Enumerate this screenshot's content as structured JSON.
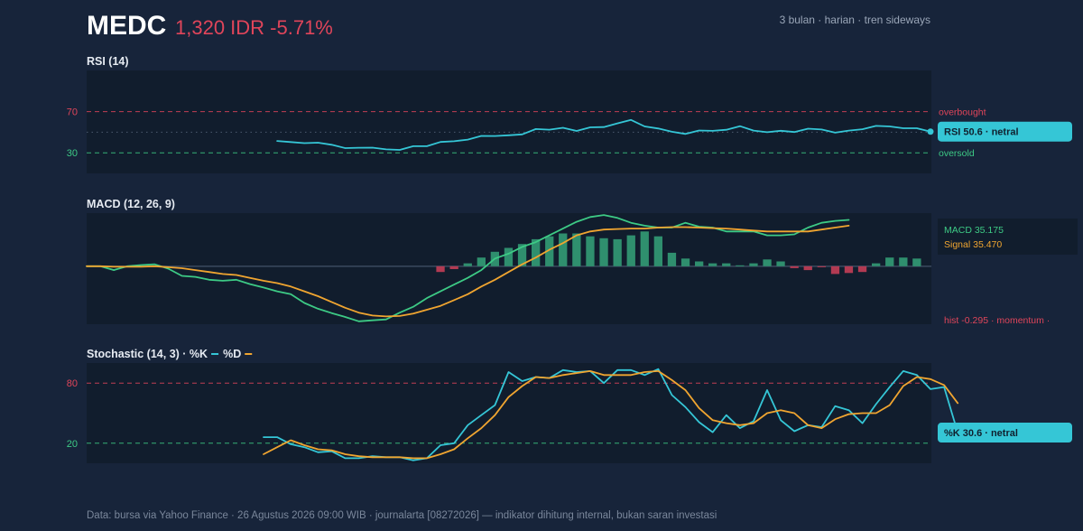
{
  "header": {
    "ticker": "MEDC",
    "price": "1,320 IDR -5.71%",
    "subtitle": "3 bulan · harian · tren sideways"
  },
  "colors": {
    "background": "#17243a",
    "panel": "#111d2d",
    "rsi": "#35c6d6",
    "macd": "#3dca85",
    "signal": "#f0a530",
    "hist_positive": "#2f8f6e",
    "hist_negative": "#b23a52",
    "overbought": "#e0455a",
    "oversold": "#3dca85"
  },
  "footer": "Data: bursa via Yahoo Finance · 26 Agustus 2026 09:00 WIB · journalarta [08272026] — indikator dihitung internal, bukan saran investasi",
  "chart_data": [
    {
      "id": "rsi",
      "type": "line",
      "title": "RSI (14)",
      "ylim": [
        10,
        110
      ],
      "yticks": [
        {
          "value": 70,
          "label": "70"
        },
        {
          "value": 30,
          "label": "30"
        }
      ],
      "levels": [
        {
          "value": 70,
          "label": "overbought",
          "color": "#e0455a"
        },
        {
          "value": 50,
          "label": "",
          "color": "#5b6b80"
        },
        {
          "value": 30,
          "label": "oversold",
          "color": "#3dca85"
        }
      ],
      "x_count": 63,
      "series": [
        {
          "color": "#35c6d6",
          "start_index": 14,
          "values": [
            41.5,
            40.4,
            39.4,
            39.8,
            37.8,
            34.6,
            34.9,
            35.0,
            33.3,
            32.8,
            36.4,
            36.4,
            40.5,
            41.2,
            42.8,
            46.4,
            46.3,
            47.0,
            47.9,
            53.1,
            52.5,
            54.3,
            51.2,
            54.7,
            55.0,
            58.6,
            61.9,
            55.6,
            53.6,
            50.4,
            48.3,
            51.7,
            51.3,
            52.4,
            55.9,
            51.6,
            50.0,
            51.4,
            50.2,
            53.4,
            52.6,
            49.6,
            51.6,
            52.9,
            56.1,
            55.6,
            53.9,
            53.9,
            50.6
          ]
        }
      ],
      "badge": "RSI 50.6 · netral"
    },
    {
      "id": "macd",
      "type": "line",
      "title": "MACD (12, 26, 9)",
      "ylim": [
        -120,
        110
      ],
      "x_count": 63,
      "series": [
        {
          "name": "MACD",
          "color": "#3dca85",
          "start_index": 0,
          "values": [
            0,
            0,
            -8,
            0,
            2.5,
            4,
            -5,
            -20,
            -22,
            -28,
            -30,
            -28,
            -37,
            -44,
            -52,
            -58,
            -76,
            -88,
            -97,
            -105,
            -114,
            -112,
            -110,
            -96,
            -84,
            -66,
            -52,
            -38,
            -24,
            -8,
            16,
            26,
            40,
            50,
            64,
            78,
            92,
            102,
            106,
            100,
            90,
            84,
            80,
            80,
            90,
            82,
            80,
            72,
            72,
            72,
            64,
            64,
            66,
            80,
            90,
            94,
            96
          ]
        },
        {
          "name": "Signal",
          "color": "#f0a530",
          "start_index": 0,
          "values": [
            0,
            0,
            -1,
            -1,
            -1,
            0,
            -2,
            -4,
            -8,
            -12,
            -16,
            -18,
            -24,
            -30,
            -35,
            -42,
            -52,
            -62,
            -74,
            -86,
            -96,
            -102,
            -104,
            -103,
            -98,
            -90,
            -82,
            -70,
            -58,
            -42,
            -28,
            -12,
            4,
            18,
            34,
            48,
            64,
            72,
            76,
            77,
            78,
            78,
            80,
            81,
            81,
            80,
            79,
            78,
            76,
            74,
            72,
            72,
            72,
            72,
            76,
            80,
            84
          ]
        }
      ],
      "histogram": {
        "start_index": 26,
        "values": [
          -12,
          -6,
          6,
          18,
          30,
          38,
          46,
          56,
          62,
          68,
          68,
          62,
          58,
          56,
          64,
          72,
          62,
          28,
          16,
          10,
          6,
          6,
          2,
          6,
          14,
          10,
          -4,
          -8,
          -2,
          -16,
          -14,
          -12,
          6,
          18,
          18,
          16
        ]
      },
      "legend": {
        "macd": "MACD 35.175",
        "signal": "Signal 35.470"
      },
      "note": "hist -0.295 · momentum ·"
    },
    {
      "id": "stochastic",
      "type": "line",
      "title": "Stochastic (14, 3) · %K",
      "title_d": "%D",
      "ylim": [
        0,
        100
      ],
      "yticks": [
        {
          "value": 80,
          "label": "80"
        },
        {
          "value": 20,
          "label": "20"
        }
      ],
      "levels": [
        {
          "value": 80,
          "label": "",
          "color": "#e0455a"
        },
        {
          "value": 20,
          "label": "",
          "color": "#3dca85"
        }
      ],
      "x_count": 63,
      "series": [
        {
          "name": "%K",
          "color": "#35c6d6",
          "start_index": 13,
          "values": [
            26,
            26,
            19,
            16,
            11,
            12,
            5,
            5,
            7,
            6,
            6,
            3,
            5,
            18,
            20,
            38,
            48,
            58,
            91,
            82,
            86,
            85,
            93,
            91,
            92,
            80,
            93,
            93,
            88,
            94,
            68,
            56,
            41,
            31,
            48,
            35,
            42,
            73,
            43,
            32,
            38,
            36,
            57,
            53,
            40,
            59,
            76,
            92,
            88,
            74,
            76,
            30.6
          ]
        },
        {
          "name": "%D",
          "color": "#f0a530",
          "start_index": 13,
          "values": [
            9,
            16,
            23,
            18,
            14,
            13,
            9,
            7,
            6,
            6,
            6,
            5,
            5,
            9,
            14,
            25,
            35,
            48,
            66,
            77,
            86,
            85,
            88,
            90,
            92,
            88,
            88,
            88,
            91,
            92,
            83,
            73,
            55,
            43,
            40,
            38,
            40,
            50,
            53,
            50,
            38,
            35,
            44,
            49,
            50,
            50,
            58,
            77,
            86,
            84,
            78,
            60
          ]
        }
      ],
      "badge": "%K 30.6 · netral"
    }
  ]
}
